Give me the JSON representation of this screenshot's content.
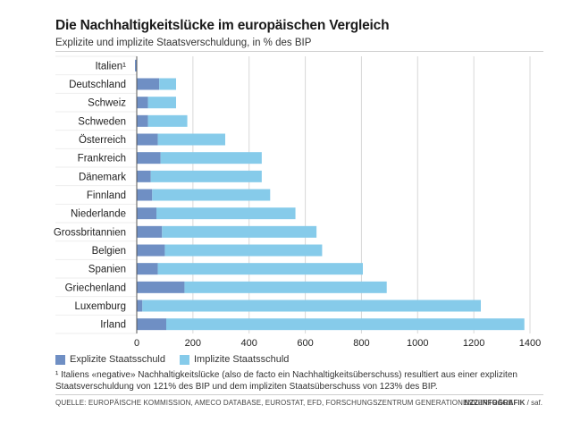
{
  "title": "Die Nachhaltigkeitslücke im europäischen Vergleich",
  "subtitle": "Explizite und implizite Staatsverschuldung, in % des BIP",
  "legend": {
    "explicit": "Explizite Staatsschuld",
    "implicit": "Implizite Staatsschuld"
  },
  "footnote": "¹ Italiens «negative» Nachhaltigkeitslücke (also de facto ein Nachhaltigkeitsüberschuss) resultiert aus einer expliziten Staatsverschuldung von 121% des BIP und dem impliziten Staatsüberschuss von 123% des BIP.",
  "source": "QUELLE: EUROPÄISCHE KOMMISSION, AMECO DATABASE, EUROSTAT, EFD, FORSCHUNGSZENTRUM GENERATIONENVERTRÄGE",
  "credit": {
    "brand": "NZZ-INFOGRAFIK",
    "author": " / saf."
  },
  "colors": {
    "explicit": "#6f8fc4",
    "implicit": "#86cbea",
    "grid": "#d8d8d8",
    "text": "#222222"
  },
  "chart_data": {
    "type": "bar",
    "orientation": "horizontal",
    "stacked": true,
    "title": "Die Nachhaltigkeitslücke im europäischen Vergleich",
    "subtitle": "Explizite und implizite Staatsverschuldung, in % des BIP",
    "xlabel": "",
    "ylabel": "",
    "xlim": [
      0,
      1400
    ],
    "xticks": [
      0,
      200,
      400,
      600,
      800,
      1000,
      1200,
      1400
    ],
    "categories": [
      "Italien¹",
      "Deutschland",
      "Schweiz",
      "Schweden",
      "Österreich",
      "Frankreich",
      "Dänemark",
      "Finnland",
      "Niederlande",
      "Grossbritannien",
      "Belgien",
      "Spanien",
      "Griechenland",
      "Luxemburg",
      "Irland"
    ],
    "series": [
      {
        "name": "Explizite Staatsschuld",
        "values": [
          -2,
          80,
          40,
          40,
          75,
          85,
          50,
          55,
          70,
          90,
          100,
          75,
          170,
          20,
          105
        ]
      },
      {
        "name": "Implizite Staatsschuld",
        "values": [
          0,
          60,
          100,
          140,
          240,
          360,
          395,
          420,
          495,
          550,
          560,
          730,
          720,
          1205,
          1275
        ]
      }
    ],
    "legend_position": "bottom-left",
    "grid": true
  }
}
